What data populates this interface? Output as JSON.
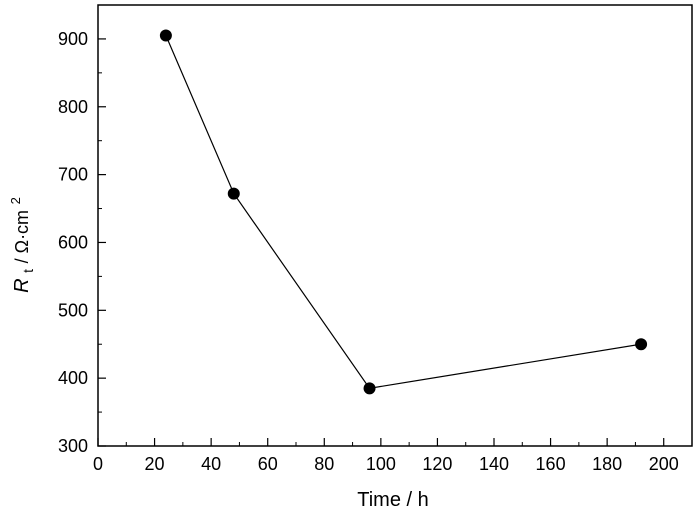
{
  "chart_data": {
    "type": "line",
    "title": "",
    "xlabel": "Time / h",
    "ylabel": {
      "symbol": "R",
      "subscript": "t",
      "unit": " / Ω·cm",
      "superscript": "2"
    },
    "xlim": [
      0,
      210
    ],
    "ylim": [
      300,
      950
    ],
    "xticks": [
      0,
      20,
      40,
      60,
      80,
      100,
      120,
      140,
      160,
      180,
      200
    ],
    "yticks": [
      300,
      400,
      500,
      600,
      700,
      800,
      900
    ],
    "series": [
      {
        "x": [
          24,
          48,
          96,
          192
        ],
        "y": [
          905,
          672,
          385,
          450
        ]
      }
    ],
    "grid": false,
    "legend": "none",
    "colors": {
      "line": "#000000",
      "marker": "#000000",
      "axis": "#000000"
    }
  }
}
